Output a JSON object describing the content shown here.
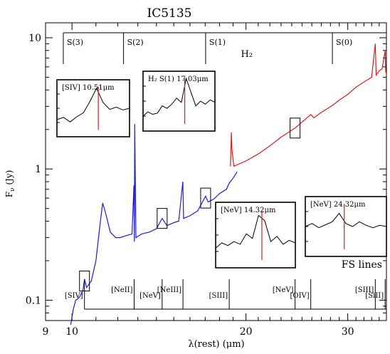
{
  "chart_data": {
    "type": "line",
    "title": "IC5135",
    "xlabel": "λ(rest)  (μm)",
    "ylabel": "F_ν (Jy)",
    "x_scale": "log",
    "y_scale": "log",
    "xlim": [
      9.0,
      35.0
    ],
    "ylim": [
      0.07,
      13.0
    ],
    "x_tick_labels": [
      {
        "value": 9,
        "label": "9"
      },
      {
        "value": 10,
        "label": "10"
      },
      {
        "value": 20,
        "label": "20"
      },
      {
        "value": 30,
        "label": "30"
      }
    ],
    "y_tick_labels": [
      {
        "value": 0.1,
        "label": "0.1"
      },
      {
        "value": 1,
        "label": "1"
      },
      {
        "value": 10,
        "label": "10"
      }
    ],
    "series": [
      {
        "color": "#1a1adf",
        "points": [
          [
            9.95,
            0.065
          ],
          [
            10.05,
            0.085
          ],
          [
            10.15,
            0.1
          ],
          [
            10.3,
            0.105
          ],
          [
            10.45,
            0.12
          ],
          [
            10.51,
            0.145
          ],
          [
            10.6,
            0.125
          ],
          [
            10.8,
            0.14
          ],
          [
            11.0,
            0.2
          ],
          [
            11.2,
            0.4
          ],
          [
            11.3,
            0.55
          ],
          [
            11.45,
            0.45
          ],
          [
            11.65,
            0.33
          ],
          [
            11.9,
            0.3
          ],
          [
            12.1,
            0.3
          ],
          [
            12.4,
            0.31
          ],
          [
            12.7,
            0.32
          ],
          [
            12.8,
            0.75
          ],
          [
            12.82,
            0.28
          ],
          [
            12.84,
            2.2
          ],
          [
            12.9,
            0.3
          ],
          [
            13.2,
            0.32
          ],
          [
            13.6,
            0.33
          ],
          [
            14.0,
            0.35
          ],
          [
            14.32,
            0.42
          ],
          [
            14.6,
            0.37
          ],
          [
            15.0,
            0.39
          ],
          [
            15.3,
            0.4
          ],
          [
            15.55,
            0.8
          ],
          [
            15.6,
            0.42
          ],
          [
            16.0,
            0.44
          ],
          [
            16.5,
            0.48
          ],
          [
            17.03,
            0.62
          ],
          [
            17.2,
            0.56
          ],
          [
            17.6,
            0.59
          ],
          [
            18.0,
            0.65
          ],
          [
            18.5,
            0.7
          ],
          [
            18.71,
            0.78
          ],
          [
            19.0,
            0.85
          ],
          [
            19.3,
            0.95
          ]
        ]
      },
      {
        "color": "#e0191b",
        "points": [
          [
            18.8,
            1.05
          ],
          [
            18.87,
            1.9
          ],
          [
            18.92,
            1.4
          ],
          [
            19.05,
            1.05
          ],
          [
            20.0,
            1.15
          ],
          [
            21.0,
            1.3
          ],
          [
            22.0,
            1.5
          ],
          [
            23.0,
            1.75
          ],
          [
            24.32,
            2.05
          ],
          [
            25.89,
            2.6
          ],
          [
            26.2,
            2.45
          ],
          [
            27.0,
            2.7
          ],
          [
            28.22,
            3.05
          ],
          [
            29.0,
            3.35
          ],
          [
            30.0,
            3.7
          ],
          [
            31.0,
            4.2
          ],
          [
            32.0,
            4.6
          ],
          [
            33.0,
            5.0
          ],
          [
            33.48,
            9.0
          ],
          [
            33.6,
            5.2
          ],
          [
            34.0,
            5.6
          ],
          [
            34.4,
            5.8
          ],
          [
            34.82,
            8.0
          ],
          [
            34.9,
            5.5
          ],
          [
            35.0,
            5.3
          ]
        ]
      }
    ],
    "h2_lines": {
      "group_label": "H₂",
      "labels": [
        {
          "wavelength": 9.66,
          "label": "S(3)"
        },
        {
          "wavelength": 12.28,
          "label": "S(2)"
        },
        {
          "wavelength": 17.03,
          "label": "S(1)"
        },
        {
          "wavelength": 28.22,
          "label": "S(0)"
        }
      ]
    },
    "fs_lines": {
      "group_label": "FS lines",
      "labels": [
        {
          "wavelength": 10.51,
          "label": "[SIV]"
        },
        {
          "wavelength": 12.81,
          "label": "[NeII]"
        },
        {
          "wavelength": 14.32,
          "label": "[NeV]"
        },
        {
          "wavelength": 15.56,
          "label": "[NeIII]"
        },
        {
          "wavelength": 18.71,
          "label": "[SIII]"
        },
        {
          "wavelength": 24.32,
          "label": "[NeV]"
        },
        {
          "wavelength": 25.89,
          "label": "[OIV]"
        },
        {
          "wavelength": 33.48,
          "label": "[SIII]"
        },
        {
          "wavelength": 34.82,
          "label": "[SiII]"
        }
      ]
    },
    "inset_boxes_on_spectrum": [
      {
        "wavelength": 10.51,
        "flux": 0.14
      },
      {
        "wavelength": 14.32,
        "flux": 0.42
      },
      {
        "wavelength": 17.03,
        "flux": 0.6
      },
      {
        "wavelength": 24.32,
        "flux": 2.05
      }
    ],
    "insets": [
      {
        "label": "[SIV] 10.51μm",
        "line_marker": 0.57,
        "profile": [
          0.3,
          0.34,
          0.26,
          0.35,
          0.42,
          0.62,
          0.85,
          0.6,
          0.48,
          0.52,
          0.47,
          0.5
        ]
      },
      {
        "label": "H₂ S(1) 17.03μm",
        "line_marker": 0.58,
        "profile": [
          0.25,
          0.32,
          0.28,
          0.3,
          0.42,
          0.38,
          0.45,
          0.55,
          0.48,
          0.88,
          0.65,
          0.42,
          0.5,
          0.45,
          0.52,
          0.48
        ]
      },
      {
        "label": "[NeV] 14.32μm",
        "line_marker": 0.58,
        "profile": [
          0.3,
          0.38,
          0.34,
          0.4,
          0.36,
          0.52,
          0.45,
          0.8,
          0.72,
          0.4,
          0.48,
          0.36,
          0.42,
          0.38
        ]
      },
      {
        "label": "[NeV] 24.32μm",
        "line_marker": 0.48,
        "profile": [
          0.5,
          0.55,
          0.48,
          0.53,
          0.58,
          0.72,
          0.55,
          0.5,
          0.58,
          0.52,
          0.48,
          0.52,
          0.5
        ]
      }
    ]
  }
}
